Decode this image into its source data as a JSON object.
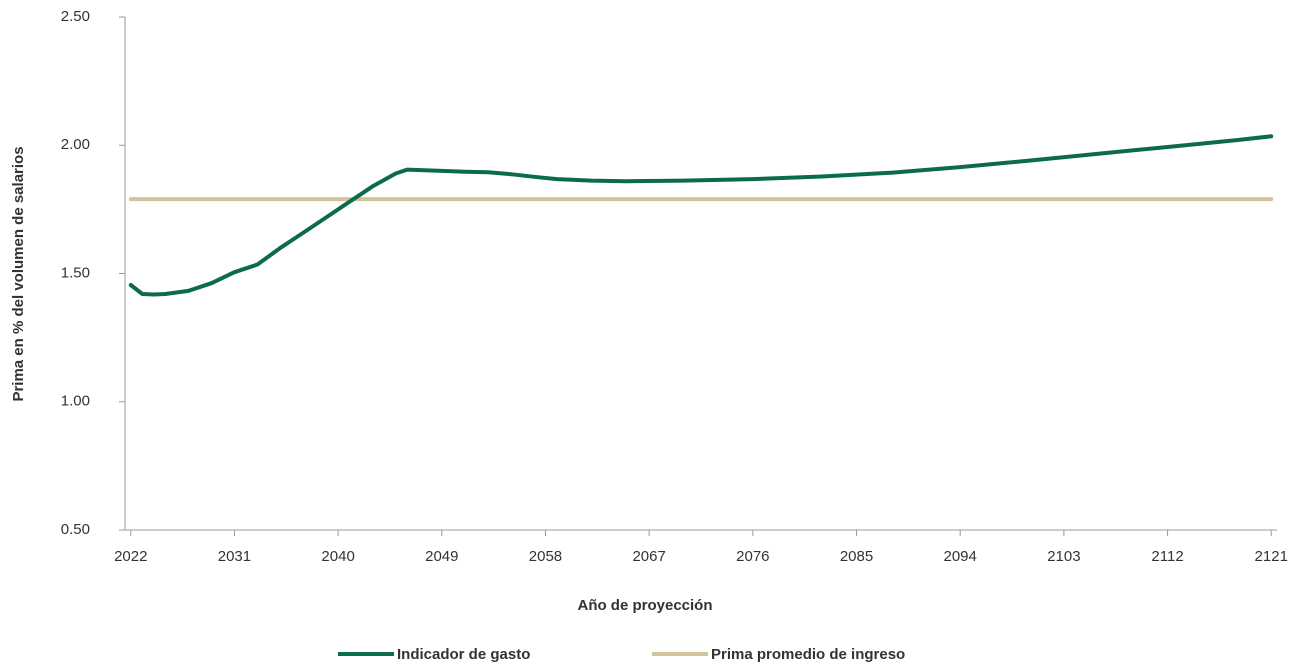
{
  "chart_data": {
    "type": "line",
    "xlabel": "Año de proyección",
    "ylabel": "Prima en % del volumen de salarios",
    "xlim": [
      2021.5,
      2121.5
    ],
    "xticks": [
      2022,
      2031,
      2040,
      2049,
      2058,
      2067,
      2076,
      2085,
      2094,
      2103,
      2112,
      2121
    ],
    "ylim": [
      0.5,
      2.5
    ],
    "yticks": [
      {
        "value": 0.5,
        "label": "0.50"
      },
      {
        "value": 1.0,
        "label": "1.00"
      },
      {
        "value": 1.5,
        "label": "1.50"
      },
      {
        "value": 2.0,
        "label": "2.00"
      },
      {
        "value": 2.5,
        "label": "2.50"
      }
    ],
    "series": [
      {
        "name": "Indicador de gasto",
        "color": "#0b6b4f",
        "x": [
          2022,
          2023,
          2024,
          2025,
          2027,
          2029,
          2031,
          2033,
          2035,
          2037,
          2039,
          2041,
          2043,
          2045,
          2046,
          2049,
          2051,
          2053,
          2055,
          2057,
          2059,
          2062,
          2065,
          2070,
          2076,
          2082,
          2088,
          2094,
          2100,
          2106,
          2112,
          2118,
          2121
        ],
        "values": [
          1.455,
          1.42,
          1.418,
          1.42,
          1.432,
          1.462,
          1.505,
          1.535,
          1.6,
          1.66,
          1.72,
          1.78,
          1.84,
          1.89,
          1.905,
          1.9,
          1.897,
          1.895,
          1.887,
          1.877,
          1.868,
          1.862,
          1.86,
          1.862,
          1.868,
          1.878,
          1.893,
          1.915,
          1.94,
          1.967,
          1.993,
          2.02,
          2.035
        ]
      },
      {
        "name": "Prima promedio de ingreso",
        "color": "#d4c29c",
        "x": [
          2022,
          2121
        ],
        "values": [
          1.79,
          1.79
        ]
      }
    ]
  }
}
